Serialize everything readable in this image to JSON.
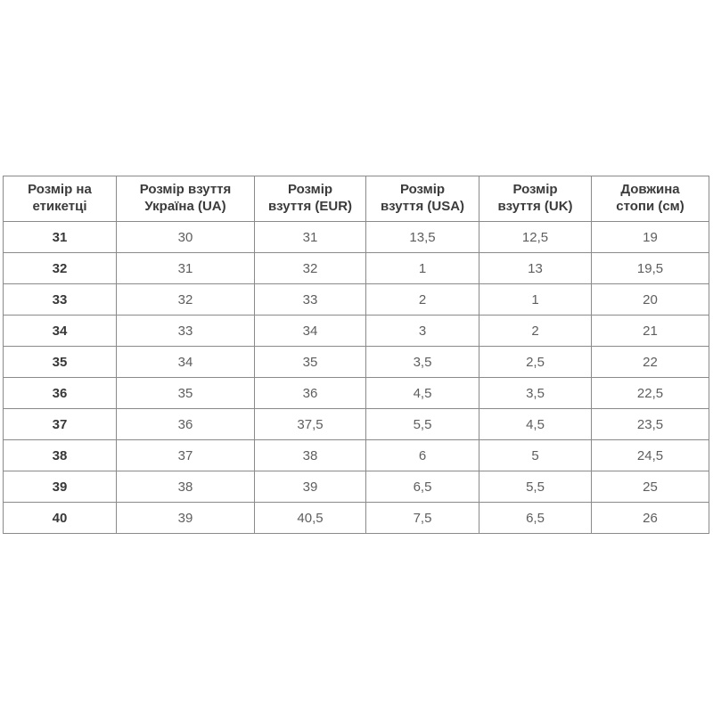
{
  "chart_data": {
    "type": "table",
    "columns": [
      "Розмір на\nетикетці",
      "Розмір взуття\nУкраїна (UA)",
      "Розмір\nвзуття (EUR)",
      "Розмір\nвзуття (USA)",
      "Розмір\nвзуття (UK)",
      "Довжина\nстопи (см)"
    ],
    "rows": [
      [
        "31",
        "30",
        "31",
        "13,5",
        "12,5",
        "19"
      ],
      [
        "32",
        "31",
        "32",
        "1",
        "13",
        "19,5"
      ],
      [
        "33",
        "32",
        "33",
        "2",
        "1",
        "20"
      ],
      [
        "34",
        "33",
        "34",
        "3",
        "2",
        "21"
      ],
      [
        "35",
        "34",
        "35",
        "3,5",
        "2,5",
        "22"
      ],
      [
        "36",
        "35",
        "36",
        "4,5",
        "3,5",
        "22,5"
      ],
      [
        "37",
        "36",
        "37,5",
        "5,5",
        "4,5",
        "23,5"
      ],
      [
        "38",
        "37",
        "38",
        "6",
        "5",
        "24,5"
      ],
      [
        "39",
        "38",
        "39",
        "6,5",
        "5,5",
        "25"
      ],
      [
        "40",
        "39",
        "40,5",
        "7,5",
        "6,5",
        "26"
      ]
    ],
    "layout_hints": {
      "grid": "all-borders",
      "header_bold": true,
      "first_column_bold": true
    }
  },
  "colors": {
    "background": "#ffffff",
    "border": "#8a8a8a",
    "header_text": "#3b3b3b",
    "cell_text": "#5e5e5e"
  }
}
